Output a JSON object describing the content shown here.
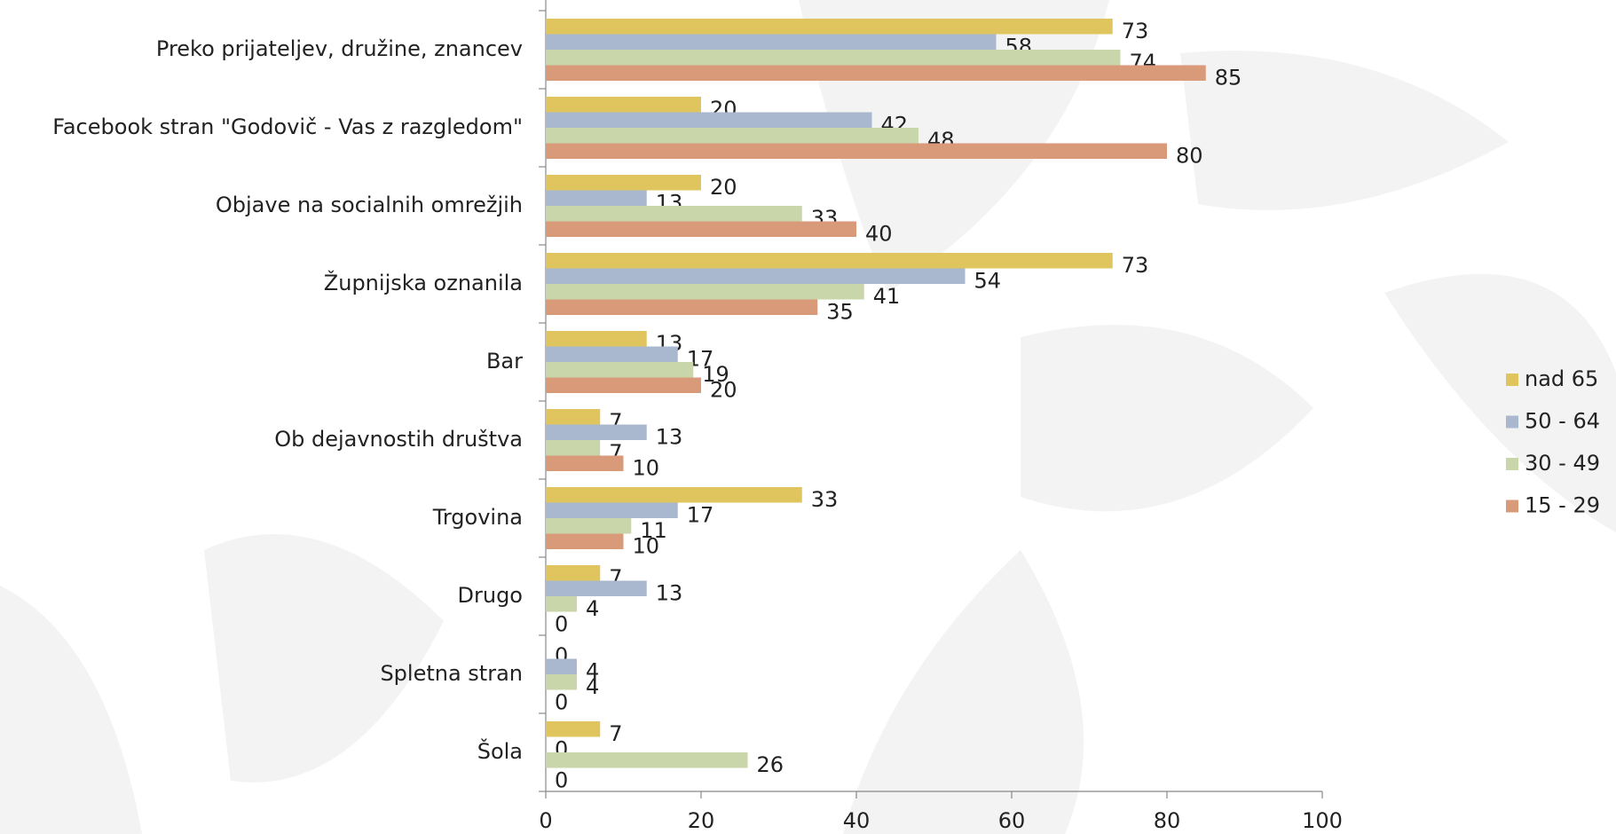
{
  "chart_data": {
    "type": "bar",
    "orientation": "horizontal",
    "categories": [
      "Preko prijateljev, družine, znancev",
      "Facebook stran \"Godovič - Vas z razgledom\"",
      "Objave na socialnih omrežjih",
      "Župnijska oznanila",
      "Bar",
      "Ob dejavnostih društva",
      "Trgovina",
      "Drugo",
      "Spletna stran",
      "Šola"
    ],
    "series": [
      {
        "name": "nad 65",
        "color": "#e0c55e",
        "values": [
          73,
          20,
          20,
          73,
          13,
          7,
          33,
          7,
          0,
          7
        ]
      },
      {
        "name": "50 - 64",
        "color": "#a9b8cf",
        "values": [
          58,
          42,
          13,
          54,
          17,
          13,
          17,
          13,
          4,
          0
        ]
      },
      {
        "name": "30 - 49",
        "color": "#c9d6aa",
        "values": [
          74,
          48,
          33,
          41,
          19,
          7,
          11,
          4,
          4,
          26
        ]
      },
      {
        "name": "15 - 29",
        "color": "#d99a7a",
        "values": [
          85,
          80,
          40,
          35,
          20,
          10,
          10,
          0,
          0,
          0
        ]
      }
    ],
    "xlim": [
      0,
      100
    ],
    "xticks": [
      0,
      20,
      40,
      60,
      80,
      100
    ],
    "legend": "right"
  }
}
